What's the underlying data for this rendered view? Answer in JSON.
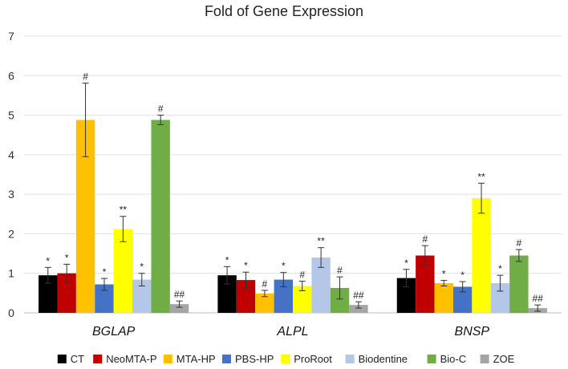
{
  "chart_data": {
    "type": "bar",
    "title": "Fold of Gene Expression",
    "categories": [
      "BGLAP",
      "ALPL",
      "BNSP"
    ],
    "ylim": [
      0,
      7
    ],
    "yticks": [
      0,
      1,
      2,
      3,
      4,
      5,
      6,
      7
    ],
    "grid": true,
    "legend_position": "bottom",
    "series": [
      {
        "name": "CT",
        "color": "#000000",
        "values": [
          0.95,
          0.95,
          0.88
        ],
        "errors": [
          0.2,
          0.22,
          0.22
        ],
        "labels": [
          "*",
          "*",
          "*"
        ]
      },
      {
        "name": "NeoMTA-P",
        "color": "#c00000",
        "values": [
          1.0,
          0.83,
          1.45
        ],
        "errors": [
          0.23,
          0.2,
          0.25
        ],
        "labels": [
          "*",
          "*",
          "#"
        ]
      },
      {
        "name": "MTA-HP",
        "color": "#ffc000",
        "values": [
          4.88,
          0.49,
          0.75
        ],
        "errors": [
          0.93,
          0.08,
          0.07
        ],
        "labels": [
          "#",
          "#",
          "*"
        ]
      },
      {
        "name": "PBS-HP",
        "color": "#4472c4",
        "values": [
          0.72,
          0.84,
          0.66
        ],
        "errors": [
          0.15,
          0.18,
          0.13
        ],
        "labels": [
          "*",
          "*",
          "*"
        ]
      },
      {
        "name": "ProRoot",
        "color": "#ffff00",
        "values": [
          2.12,
          0.68,
          2.9
        ],
        "errors": [
          0.32,
          0.12,
          0.38
        ],
        "labels": [
          "**",
          "#",
          "**"
        ]
      },
      {
        "name": "Biodentine",
        "color": "#b4c7e7",
        "values": [
          0.84,
          1.4,
          0.75
        ],
        "errors": [
          0.16,
          0.25,
          0.2
        ],
        "labels": [
          "*",
          "**",
          "*"
        ]
      },
      {
        "name": "Bio-C",
        "color": "#70ad47",
        "values": [
          4.88,
          0.63,
          1.45
        ],
        "errors": [
          0.12,
          0.28,
          0.15
        ],
        "labels": [
          "#",
          "#",
          "#"
        ]
      },
      {
        "name": "ZOE",
        "color": "#a5a5a5",
        "values": [
          0.22,
          0.2,
          0.12
        ],
        "errors": [
          0.08,
          0.08,
          0.08
        ],
        "labels": [
          "##",
          "##",
          "##"
        ]
      }
    ]
  }
}
